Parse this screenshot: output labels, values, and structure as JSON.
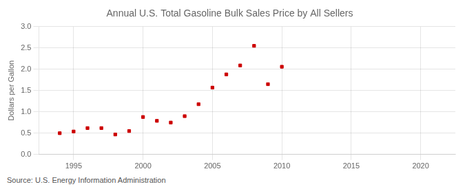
{
  "chart_data": {
    "type": "scatter",
    "title": "Annual U.S. Total Gasoline Bulk Sales Price by All Sellers",
    "ylabel": "Dollars per Gallon",
    "annotations": [
      "Source: U.S. Energy Information Administration"
    ],
    "x": [
      1994,
      1995,
      1996,
      1997,
      1998,
      1999,
      2000,
      2001,
      2002,
      2003,
      2004,
      2005,
      2006,
      2007,
      2008,
      2009,
      2010
    ],
    "values": [
      0.5,
      0.54,
      0.62,
      0.62,
      0.47,
      0.55,
      0.88,
      0.79,
      0.75,
      0.9,
      1.18,
      1.57,
      1.88,
      2.09,
      2.55,
      1.65,
      2.06
    ],
    "color": "#cc0000",
    "marker": "square",
    "xlim": [
      1992.5,
      2022.5
    ],
    "xticks": [
      1995,
      2000,
      2005,
      2010,
      2015,
      2020
    ],
    "ylim": [
      0.0,
      3.0
    ],
    "yticks": [
      {
        "value": 0.0,
        "label": "0.0"
      },
      0.5,
      {
        "value": 1.0,
        "label": "1.0"
      },
      1.5,
      {
        "value": 2.0,
        "label": "2.0"
      },
      2.5,
      {
        "value": 3.0,
        "label": "3.0"
      }
    ],
    "grid": true
  }
}
